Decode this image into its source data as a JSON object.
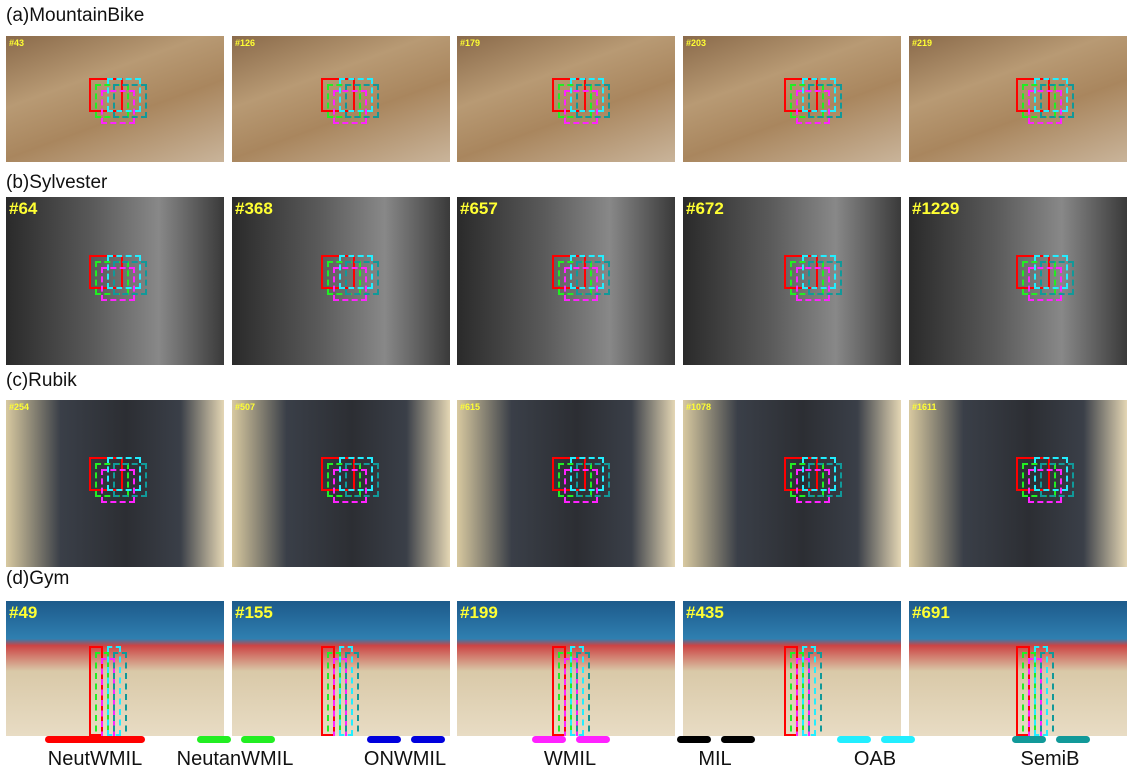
{
  "rows": [
    {
      "title": "(a)MountainBike",
      "frames": [
        "#43",
        "#126",
        "#179",
        "#203",
        "#219"
      ]
    },
    {
      "title": "(b)Sylvester",
      "frames": [
        "#64",
        "#368",
        "#657",
        "#672",
        "#1229"
      ]
    },
    {
      "title": "(c)Rubik",
      "frames": [
        "#254",
        "#507",
        "#615",
        "#1078",
        "#1611"
      ]
    },
    {
      "title": "(d)Gym",
      "frames": [
        "#49",
        "#155",
        "#199",
        "#435",
        "#691"
      ]
    }
  ],
  "legend": [
    {
      "name": "NeutWMIL",
      "color": "#ff0000",
      "dashed": false
    },
    {
      "name": "NeutanWMIL",
      "color": "#22ee22",
      "dashed": true
    },
    {
      "name": "ONWMIL",
      "color": "#0000dd",
      "dashed": true
    },
    {
      "name": "WMIL",
      "color": "#ff22ff",
      "dashed": true
    },
    {
      "name": "MIL",
      "color": "#000000",
      "dashed": true
    },
    {
      "name": "OAB",
      "color": "#22eeff",
      "dashed": true
    },
    {
      "name": "SemiB",
      "color": "#119999",
      "dashed": true
    }
  ]
}
